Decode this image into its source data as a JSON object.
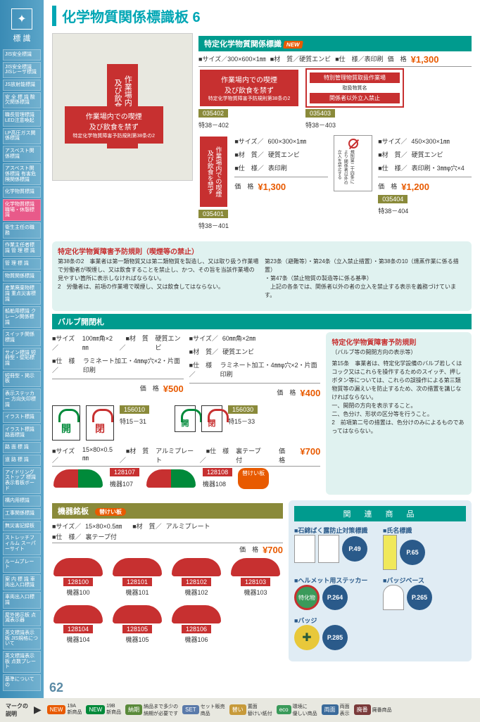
{
  "page": {
    "title": "化学物質関係標識板 6",
    "number": "62"
  },
  "sidebar": {
    "header": "標 識",
    "items": [
      "JIS安全標識",
      "JIS安全標識\nJISレーザ標識",
      "JS放射能標識",
      "安 全 標 識\n酸欠関係標識",
      "職長管理標識\nLED注意喚起",
      "LP高圧ガス関係標識",
      "アスベスト関係標識",
      "アスベスト関係標識\n有害危険関係標識",
      "化学物質標識",
      "化学物質標識\n職場・休憩標識",
      "衛生主任の職務",
      "作業主任者標識\n管 理 標 識",
      "管 理 標 識",
      "物質関係標識",
      "産業廃棄物標識\n重点災害標識",
      "船舶用標識\nクレーン関係標識",
      "スイッチ関係標識",
      "サイン標識\n短冊型・壁貼標識",
      "短冊型・掲示板",
      "表示ステッカー\n方向矢印標識",
      "イラスト標識",
      "イラスト標識\n路面標識",
      "路 面 標 識",
      "道 路 標 識",
      "アイドリングストップ\n標識表示看板ボード",
      "構内用標識",
      "工事関係標識",
      "無災害記録板",
      "ストレッチフィルム\nスーパーサイト",
      "ルームプレート",
      "案 内 標 識\n車両出入口標識",
      "車両出入口標識",
      "屋外掲示板\n点滅表示器",
      "英文標識表示板\nJIS規格について",
      "英文標識表示板\n点数プレート",
      "基準についての"
    ],
    "active_index": 9
  },
  "sec1": {
    "title": "特定化学物質関係標識",
    "new": "NEW",
    "spec_main": {
      "size": "300×600×1㎜",
      "material": "硬質エンビ",
      "finish": "表印刷",
      "price": "¥1,300"
    },
    "sign1": {
      "line1": "作業場内での喫煙",
      "line2": "及び飲食を禁ず",
      "line3": "特定化学物質障害予防規則第38条の2",
      "code": "035402",
      "sub": "特38－402"
    },
    "sign2": {
      "title": "特別管理物質取扱作業場",
      "sub1": "取扱物質名",
      "line": "関係者以外立入禁止",
      "code": "035403",
      "sub": "特38－403"
    },
    "sign3": {
      "text": "作業場内での喫煙\n及び飲食を禁ず",
      "spec": {
        "size": "600×300×1㎜",
        "material": "硬質エンビ",
        "finish": "表印刷",
        "price": "¥1,300"
      },
      "code": "035401",
      "sub": "特38－401"
    },
    "sign4": {
      "spec": {
        "size": "450×300×1㎜",
        "material": "硬質エンビ",
        "finish": "表印刷・3㎜φ穴×4",
        "price": "¥1,200"
      },
      "code": "035404",
      "sub": "特38－404",
      "text": "規則第二十四条により\n関係者以外の\n立入を禁止する"
    }
  },
  "rule1": {
    "title": "特定化学物質障害予防規則（喫煙等の禁止）",
    "body1": "第38条の2　事業者は第一類物質又は第二類物質を製造し、又は取り扱う作業場で労働者が喫煙し、又は飲食することを禁止し、かつ、その旨を当該作業場の見やすい箇所に表示しなければならない。\n2　労働者は、前項の作業場で喫煙し、又は飲食してはならない。",
    "body2": "第23条（避難等）・第24条（立入禁止措置）・第38条の10（燻蒸作業に係る措置）\n・第47条（禁止物質の製造等に係る基準）\n　上記の各条では、関係者以外の者の立入を禁止する表示を義務づけています。"
  },
  "sec2": {
    "title": "バルブ開閉札",
    "specA": {
      "size": "100㎜角×2㎜",
      "material": "硬質エンビ",
      "finish": "ラミネート加工・4㎜φ穴×2・片面印刷",
      "price": "¥500"
    },
    "specB": {
      "size": "60㎜角×2㎜",
      "material": "硬質エンビ",
      "finish": "ラミネート加工・4㎜φ穴×2・片面印刷",
      "price": "¥400"
    },
    "open": "開",
    "close": "閉",
    "item1": {
      "code": "156010",
      "sub": "特15－31"
    },
    "item2": {
      "code": "156030",
      "sub": "特15－33"
    },
    "specC": {
      "size": "15×80×0.5㎜",
      "material": "アルミプレート",
      "finish": "裏テープ付",
      "price": "¥700"
    },
    "arc1": {
      "code": "128107",
      "sub": "機器107"
    },
    "arc2": {
      "code": "128108",
      "sub": "機器108"
    },
    "badge": "替けい板"
  },
  "rule2": {
    "title": "特定化学物質障害予防規則",
    "subtitle": "（バルブ等の開閉方向の表示等）",
    "body": "第15条　事業者は、特定化学設備のバルブ若しくはコック又はこれらを操作するためのスイッチ、押しボタン等については、これらの誤操作による第三類物質等の漏えいを防止するため、次の措置を講じなければならない。\n一、開閉の方向を表示すること。\n二、色分け、形状の区分等を行うこと。\n2　前項第二号の措置は、色分けのみによるものであってはならない。"
  },
  "sec3": {
    "title": "機器銘板",
    "badge": "替けい板",
    "spec": {
      "size": "15×80×0.5㎜",
      "material": "アルミプレート",
      "finish": "裏テープ付",
      "price": "¥700"
    },
    "items": [
      {
        "code": "128100",
        "sub": "機器100"
      },
      {
        "code": "128101",
        "sub": "機器101"
      },
      {
        "code": "128102",
        "sub": "機器102"
      },
      {
        "code": "128103",
        "sub": "機器103"
      },
      {
        "code": "128104",
        "sub": "機器104"
      },
      {
        "code": "128105",
        "sub": "機器105"
      },
      {
        "code": "128106",
        "sub": "機器106"
      }
    ]
  },
  "related": {
    "title": "関　連　商　品",
    "items": [
      {
        "label": "■石綿ばく露防止対策標識",
        "page": "P.49"
      },
      {
        "label": "■氏名標識",
        "page": "P.65"
      },
      {
        "label": "■ヘルメット用ステッカー",
        "page": "P.264"
      },
      {
        "label": "■バッジベース",
        "page": "P.265"
      },
      {
        "label": "■バッジ",
        "page": "P.285"
      }
    ],
    "sticker": "特化物"
  },
  "footer": {
    "label": "マークの\n説明",
    "badges": [
      {
        "text": "NEW",
        "desc": "19A\n新商品",
        "bg": "#e85a00"
      },
      {
        "text": "NEW",
        "desc": "19B\n新商品",
        "bg": "#008a3a"
      },
      {
        "text": "納期",
        "desc": "納品まで多少の\n納期が必要です",
        "bg": "#5a8a3a"
      },
      {
        "text": "SET",
        "desc": "セット販売\n商品",
        "bg": "#5a7aaa"
      },
      {
        "text": "替い",
        "desc": "置面\n替けい紙付",
        "bg": "#c79a3a"
      },
      {
        "text": "eco",
        "desc": "環境に\n優しい商品",
        "bg": "#3a9a5a"
      },
      {
        "text": "両面",
        "desc": "両面\n表示",
        "bg": "#3a6a9a"
      },
      {
        "text": "廃番",
        "desc": "廃番商品",
        "bg": "#7a3a3a"
      }
    ]
  }
}
